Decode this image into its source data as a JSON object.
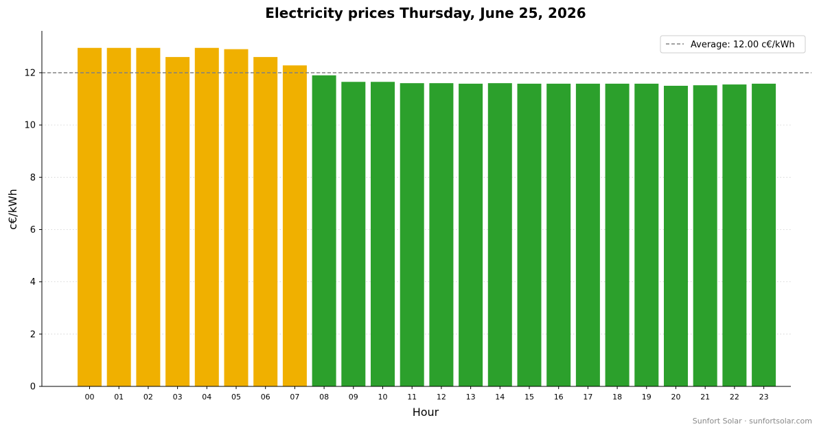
{
  "chart_data": {
    "type": "bar",
    "title": "Electricity prices Thursday, June 25, 2026",
    "xlabel": "Hour",
    "ylabel": "c€/kWh",
    "categories": [
      "00",
      "01",
      "02",
      "03",
      "04",
      "05",
      "06",
      "07",
      "08",
      "09",
      "10",
      "11",
      "12",
      "13",
      "14",
      "15",
      "16",
      "17",
      "18",
      "19",
      "20",
      "21",
      "22",
      "23"
    ],
    "values": [
      12.95,
      12.95,
      12.95,
      12.6,
      12.95,
      12.9,
      12.6,
      12.28,
      11.9,
      11.65,
      11.65,
      11.6,
      11.6,
      11.58,
      11.6,
      11.58,
      11.58,
      11.58,
      11.58,
      11.58,
      11.5,
      11.52,
      11.55,
      11.58
    ],
    "ylim": [
      0,
      13.6
    ],
    "yticks": [
      0,
      2,
      4,
      6,
      8,
      10,
      12
    ],
    "grid": "horizontal-dotted",
    "average": {
      "value": 12.0,
      "label": "Average: 12.00 c€/kWh"
    },
    "legend": {
      "placement": "top-right"
    },
    "colors": {
      "above_average": "#f0b000",
      "below_average": "#2ca02c",
      "average_line": "#808080"
    }
  },
  "footer": "Sunfort Solar · sunfortsolar.com"
}
